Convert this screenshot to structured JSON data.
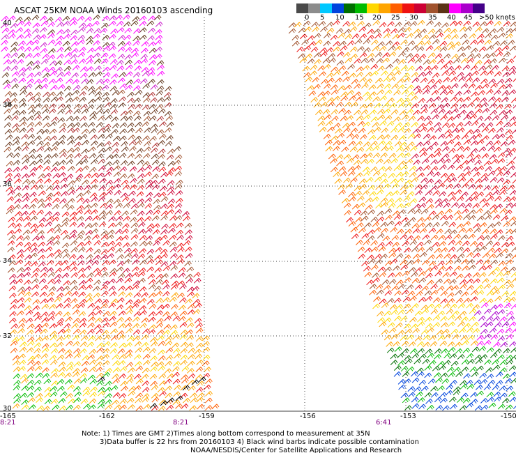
{
  "title": "ASCAT 25KM NOAA Winds 20160103 ascending",
  "legend": {
    "colors": [
      "#4a4a4a",
      "#8c8c8c",
      "#00c8ff",
      "#0044dd",
      "#006f00",
      "#00bb00",
      "#ffd700",
      "#ffa500",
      "#ff5e00",
      "#ee1111",
      "#cc0033",
      "#a0522d",
      "#5c3317",
      "#ff00ff",
      "#aa00cc",
      "#440088"
    ],
    "labels": [
      "0",
      "5",
      "10",
      "15",
      "20",
      "25",
      "30",
      "35",
      "40",
      "45",
      ">50 knots"
    ]
  },
  "axes": {
    "lon_ticks": [
      "-165",
      "-162",
      "-159",
      "-156",
      "-153",
      "-150"
    ],
    "lat_ticks": [
      "40",
      "38",
      "36",
      "34",
      "32",
      "30"
    ]
  },
  "times": [
    "8:21",
    "8:21",
    "6:41"
  ],
  "notes": [
    "Note: 1) Times are GMT 2)Times along bottom correspond to measurement at 35N",
    "3)Data buffer is 22 hrs from 20160103 4) Black wind barbs indicate possible contamination",
    "NOAA/NESDIS/Center for Satellite Applications and Research"
  ],
  "colors": {
    "grid": "#000000",
    "time_label": "#800080",
    "contamination": "#000000"
  }
}
